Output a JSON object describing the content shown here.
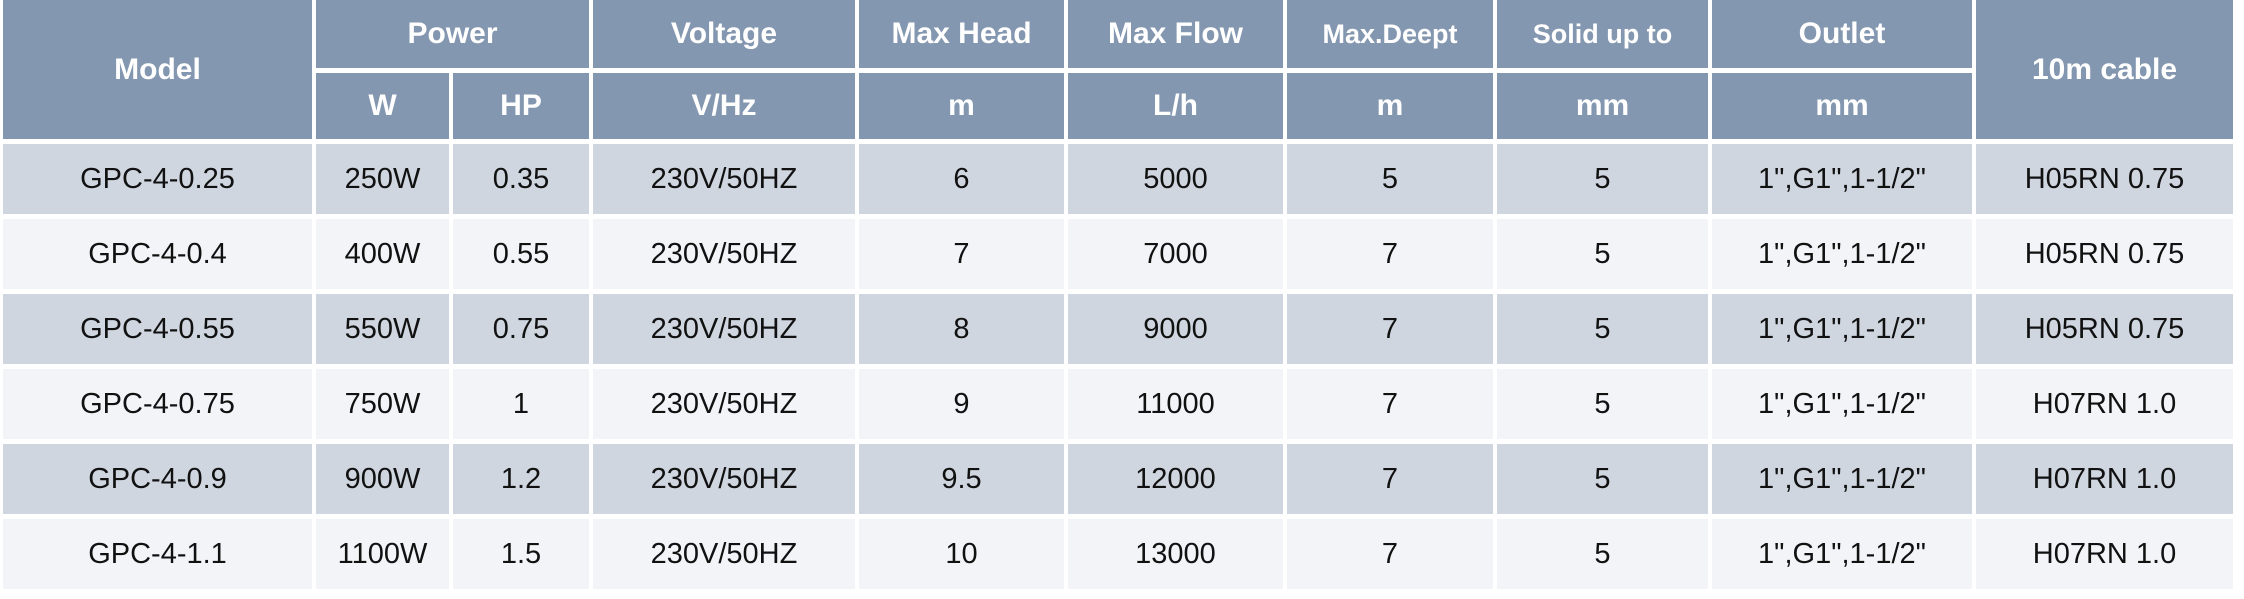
{
  "header": {
    "model": "Model",
    "power": "Power",
    "voltage": "Voltage",
    "max_head": "Max Head",
    "max_flow": "Max Flow",
    "max_deept": "Max.Deept",
    "solid": "Solid up to",
    "outlet": "Outlet",
    "cable": "10m cable",
    "units": {
      "w": "W",
      "hp": "HP",
      "voltage": "V/Hz",
      "max_head": "m",
      "max_flow": "L/h",
      "max_deept": "m",
      "solid": "mm",
      "outlet": "mm"
    }
  },
  "rows": [
    [
      "GPC-4-0.25",
      "250W",
      "0.35",
      "230V/50HZ",
      "6",
      "5000",
      "5",
      "5",
      "1\",G1\",1-1/2\"",
      "H05RN 0.75"
    ],
    [
      "GPC-4-0.4",
      "400W",
      "0.55",
      "230V/50HZ",
      "7",
      "7000",
      "7",
      "5",
      "1\",G1\",1-1/2\"",
      "H05RN 0.75"
    ],
    [
      "GPC-4-0.55",
      "550W",
      "0.75",
      "230V/50HZ",
      "8",
      "9000",
      "7",
      "5",
      "1\",G1\",1-1/2\"",
      "H05RN 0.75"
    ],
    [
      "GPC-4-0.75",
      "750W",
      "1",
      "230V/50HZ",
      "9",
      "11000",
      "7",
      "5",
      "1\",G1\",1-1/2\"",
      "H07RN 1.0"
    ],
    [
      "GPC-4-0.9",
      "900W",
      "1.2",
      "230V/50HZ",
      "9.5",
      "12000",
      "7",
      "5",
      "1\",G1\",1-1/2\"",
      "H07RN 1.0"
    ],
    [
      "GPC-4-1.1",
      "1100W",
      "1.5",
      "230V/50HZ",
      "10",
      "13000",
      "7",
      "5",
      "1\",G1\",1-1/2\"",
      "H07RN 1.0"
    ]
  ],
  "colors": {
    "header_bg": "#8497b0",
    "row_odd": "#cfd6df",
    "row_even": "#f2f4f7"
  }
}
